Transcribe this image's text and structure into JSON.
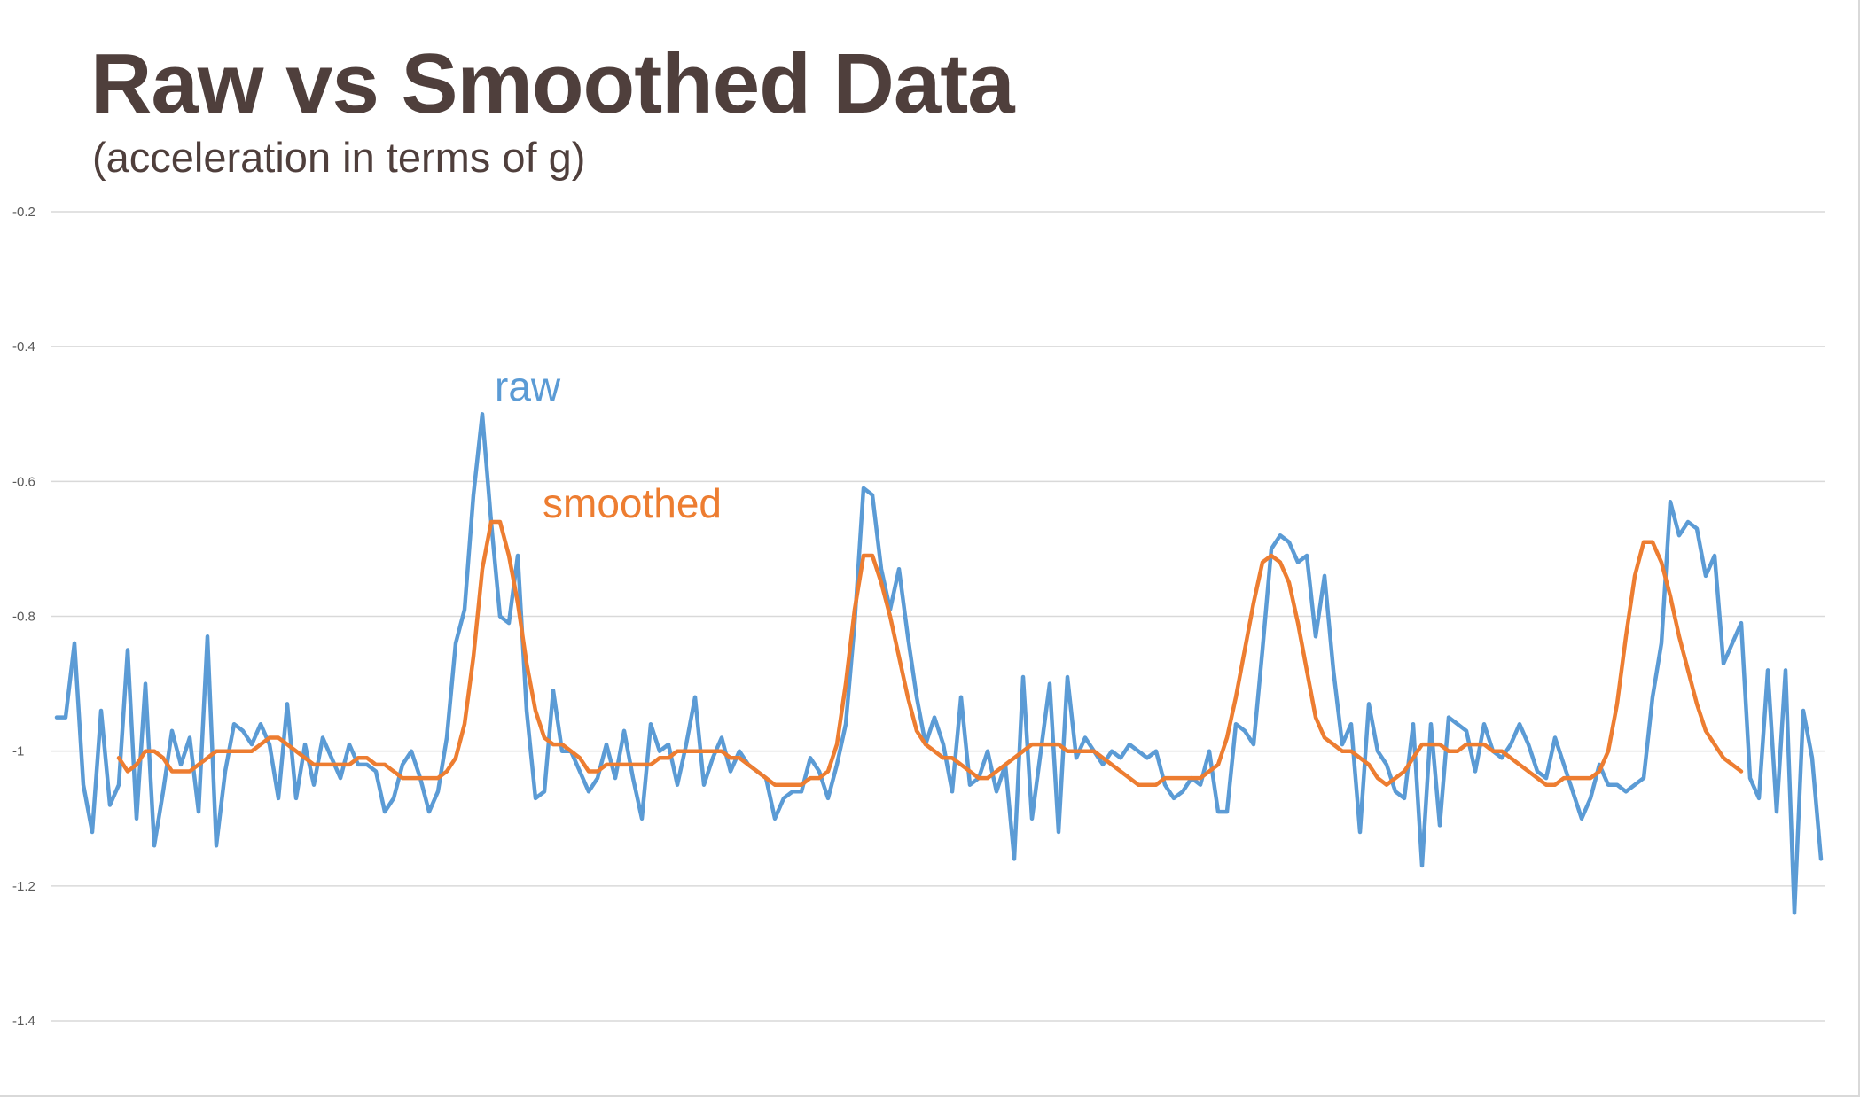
{
  "title": "Raw vs Smoothed Data",
  "subtitle": "(acceleration in terms of g)",
  "chart_data": {
    "type": "line",
    "title": "Raw vs Smoothed Data",
    "subtitle": "(acceleration in terms of g)",
    "xlabel": "",
    "ylabel": "",
    "ylim": [
      -1.4,
      -0.2
    ],
    "yticks": [
      -0.2,
      -0.4,
      -0.6,
      -0.8,
      -1,
      -1.2,
      -1.4
    ],
    "ytick_labels": [
      "-0.2",
      "-0.4",
      "-0.6",
      "-0.8",
      "-1",
      "-1.2",
      "-1.4"
    ],
    "grid": "horizontal",
    "legend": "inline labels",
    "series": [
      {
        "name": "raw",
        "color": "#5b9bd5",
        "values": [
          -0.95,
          -0.95,
          -0.84,
          -1.05,
          -1.12,
          -0.94,
          -1.08,
          -1.05,
          -0.85,
          -1.1,
          -0.9,
          -1.14,
          -1.06,
          -0.97,
          -1.02,
          -0.98,
          -1.09,
          -0.83,
          -1.14,
          -1.03,
          -0.96,
          -0.97,
          -0.99,
          -0.96,
          -0.99,
          -1.07,
          -0.93,
          -1.07,
          -0.99,
          -1.05,
          -0.98,
          -1.01,
          -1.04,
          -0.99,
          -1.02,
          -1.02,
          -1.03,
          -1.09,
          -1.07,
          -1.02,
          -1,
          -1.04,
          -1.09,
          -1.06,
          -0.98,
          -0.84,
          -0.79,
          -0.62,
          -0.5,
          -0.66,
          -0.8,
          -0.81,
          -0.71,
          -0.94,
          -1.07,
          -1.06,
          -0.91,
          -1,
          -1,
          -1.03,
          -1.06,
          -1.04,
          -0.99,
          -1.04,
          -0.97,
          -1.04,
          -1.1,
          -0.96,
          -1,
          -0.99,
          -1.05,
          -0.99,
          -0.92,
          -1.05,
          -1.01,
          -0.98,
          -1.03,
          -1,
          -1.02,
          -1.03,
          -1.04,
          -1.1,
          -1.07,
          -1.06,
          -1.06,
          -1.01,
          -1.03,
          -1.07,
          -1.02,
          -0.96,
          -0.81,
          -0.61,
          -0.62,
          -0.73,
          -0.79,
          -0.73,
          -0.83,
          -0.92,
          -0.99,
          -0.95,
          -0.99,
          -1.06,
          -0.92,
          -1.05,
          -1.04,
          -1,
          -1.06,
          -1.02,
          -1.16,
          -0.89,
          -1.1,
          -1,
          -0.9,
          -1.12,
          -0.89,
          -1.01,
          -0.98,
          -1,
          -1.02,
          -1,
          -1.01,
          -0.99,
          -1,
          -1.01,
          -1,
          -1.05,
          -1.07,
          -1.06,
          -1.04,
          -1.05,
          -1,
          -1.09,
          -1.09,
          -0.96,
          -0.97,
          -0.99,
          -0.85,
          -0.7,
          -0.68,
          -0.69,
          -0.72,
          -0.71,
          -0.83,
          -0.74,
          -0.88,
          -0.99,
          -0.96,
          -1.12,
          -0.93,
          -1,
          -1.02,
          -1.06,
          -1.07,
          -0.96,
          -1.17,
          -0.96,
          -1.11,
          -0.95,
          -0.96,
          -0.97,
          -1.03,
          -0.96,
          -1,
          -1.01,
          -0.99,
          -0.96,
          -0.99,
          -1.03,
          -1.04,
          -0.98,
          -1.02,
          -1.06,
          -1.1,
          -1.07,
          -1.02,
          -1.05,
          -1.05,
          -1.06,
          -1.05,
          -1.04,
          -0.92,
          -0.84,
          -0.63,
          -0.68,
          -0.66,
          -0.67,
          -0.74,
          -0.71,
          -0.87,
          -0.84,
          -0.81,
          -1.04,
          -1.07,
          -0.88,
          -1.09,
          -0.88,
          -1.24,
          -0.94,
          -1.01,
          -1.16
        ]
      },
      {
        "name": "smoothed",
        "color": "#ed7d31",
        "values": [
          -1.01,
          -1.03,
          -1.02,
          -1,
          -1,
          -1.01,
          -1.03,
          -1.03,
          -1.03,
          -1.02,
          -1.01,
          -1,
          -1,
          -1,
          -1,
          -1,
          -0.99,
          -0.98,
          -0.98,
          -0.99,
          -1,
          -1.01,
          -1.02,
          -1.02,
          -1.02,
          -1.02,
          -1.02,
          -1.01,
          -1.01,
          -1.02,
          -1.02,
          -1.03,
          -1.04,
          -1.04,
          -1.04,
          -1.04,
          -1.04,
          -1.03,
          -1.01,
          -0.96,
          -0.86,
          -0.73,
          -0.66,
          -0.66,
          -0.71,
          -0.78,
          -0.87,
          -0.94,
          -0.98,
          -0.99,
          -0.99,
          -1,
          -1.01,
          -1.03,
          -1.03,
          -1.02,
          -1.02,
          -1.02,
          -1.02,
          -1.02,
          -1.02,
          -1.01,
          -1.01,
          -1,
          -1,
          -1,
          -1,
          -1,
          -1,
          -1.01,
          -1.01,
          -1.02,
          -1.03,
          -1.04,
          -1.05,
          -1.05,
          -1.05,
          -1.05,
          -1.04,
          -1.04,
          -1.03,
          -0.99,
          -0.9,
          -0.79,
          -0.71,
          -0.71,
          -0.75,
          -0.8,
          -0.86,
          -0.92,
          -0.97,
          -0.99,
          -1,
          -1.01,
          -1.01,
          -1.02,
          -1.03,
          -1.04,
          -1.04,
          -1.03,
          -1.02,
          -1.01,
          -1,
          -0.99,
          -0.99,
          -0.99,
          -0.99,
          -1,
          -1,
          -1,
          -1,
          -1.01,
          -1.02,
          -1.03,
          -1.04,
          -1.05,
          -1.05,
          -1.05,
          -1.04,
          -1.04,
          -1.04,
          -1.04,
          -1.04,
          -1.03,
          -1.02,
          -0.98,
          -0.92,
          -0.85,
          -0.78,
          -0.72,
          -0.71,
          -0.72,
          -0.75,
          -0.81,
          -0.88,
          -0.95,
          -0.98,
          -0.99,
          -1,
          -1,
          -1.01,
          -1.02,
          -1.04,
          -1.05,
          -1.04,
          -1.03,
          -1.01,
          -0.99,
          -0.99,
          -0.99,
          -1,
          -1,
          -0.99,
          -0.99,
          -0.99,
          -1,
          -1,
          -1.01,
          -1.02,
          -1.03,
          -1.04,
          -1.05,
          -1.05,
          -1.04,
          -1.04,
          -1.04,
          -1.04,
          -1.03,
          -1,
          -0.93,
          -0.83,
          -0.74,
          -0.69,
          -0.69,
          -0.72,
          -0.77,
          -0.83,
          -0.88,
          -0.93,
          -0.97,
          -0.99,
          -1.01,
          -1.02,
          -1.03
        ]
      }
    ]
  }
}
